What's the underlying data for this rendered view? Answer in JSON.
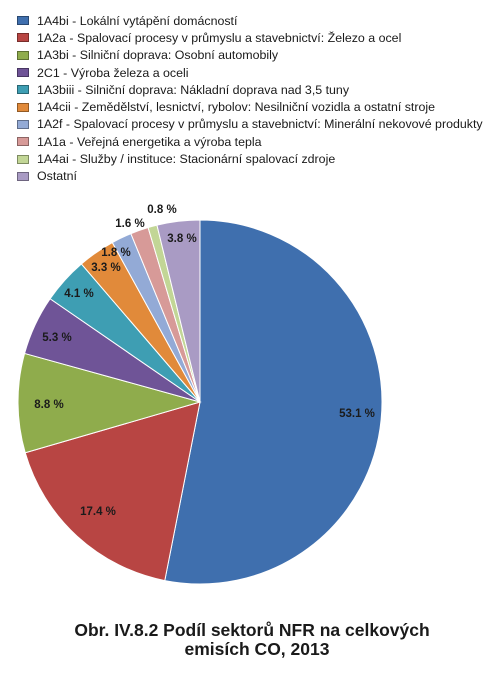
{
  "chart_data": {
    "type": "pie",
    "slices": [
      {
        "label": "1A4bi - Lokální vytápění domácností",
        "value": 53.1,
        "value_label": "53.1 %",
        "color": "#3f6fae"
      },
      {
        "label": "1A2a - Spalovací procesy v průmyslu a stavebnictví: Železo a ocel",
        "value": 17.4,
        "value_label": "17.4 %",
        "color": "#b84543"
      },
      {
        "label": "1A3bi - Silniční doprava: Osobní automobily",
        "value": 8.8,
        "value_label": "8.8 %",
        "color": "#8fac4c"
      },
      {
        "label": "2C1 - Výroba železa a oceli",
        "value": 5.3,
        "value_label": "5.3 %",
        "color": "#6f5497"
      },
      {
        "label": "1A3biii - Silniční doprava: Nákladní doprava nad 3,5 tuny",
        "value": 4.1,
        "value_label": "4.1 %",
        "color": "#3e9eb3"
      },
      {
        "label": "1A4cii - Zemědělství, lesnictví, rybolov: Nesilniční vozidla a ostatní stroje",
        "value": 3.3,
        "value_label": "3.3 %",
        "color": "#e18a3a"
      },
      {
        "label": "1A2f - Spalovací procesy v průmyslu a stavebnictví: Minerální nekovové produkty",
        "value": 1.8,
        "value_label": "1.8 %",
        "color": "#93aad6"
      },
      {
        "label": "1A1a - Veřejná energetika a výroba tepla",
        "value": 1.6,
        "value_label": "1.6 %",
        "color": "#d79a98"
      },
      {
        "label": "1A4ai - Služby / instituce: Stacionární spalovací zdroje",
        "value": 0.8,
        "value_label": "0.8 %",
        "color": "#c2d696"
      },
      {
        "label": "Ostatní",
        "value": 3.8,
        "value_label": "3.8 %",
        "color": "#a99bc4"
      }
    ],
    "start_angle": "12 o'clock",
    "direction": "clockwise",
    "legend_position": "top-left"
  },
  "caption": {
    "line1": "Obr. IV.8.2  Podíl sektorů NFR na celkových",
    "line2": "emisích CO, 2013"
  }
}
